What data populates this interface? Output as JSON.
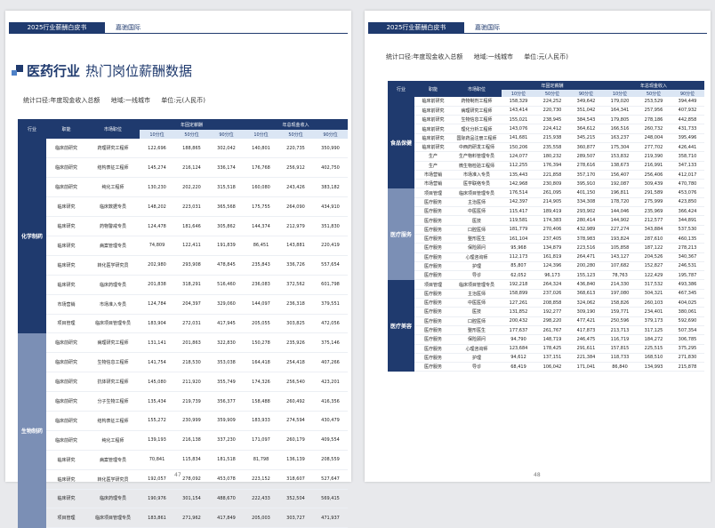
{
  "header": {
    "report": "2025行业薪酬白皮书",
    "brand": "嘉驰国际"
  },
  "left": {
    "title_bold": "医药行业",
    "title_rest": "热门岗位薪酬数据",
    "meta": {
      "basis": "统计口径:年度现金收入总额",
      "region": "地域:一线城市",
      "unit": "单位:元(人民币)"
    },
    "cols": {
      "industry": "行业",
      "function": "职能",
      "position": "市场职位",
      "fixed": "年固定薪酬",
      "total": "年总现金收入",
      "p10": "10分位",
      "p50": "50分位",
      "p90": "90分位"
    },
    "groups": [
      {
        "name": "化学制药",
        "rows": [
          [
            "临床前研究",
            "药理研究工程师",
            "122,696",
            "188,865",
            "302,042",
            "140,801",
            "220,735",
            "350,990"
          ],
          [
            "临床前研究",
            "结构表征工程师",
            "145,274",
            "216,124",
            "336,174",
            "176,768",
            "256,912",
            "402,750"
          ],
          [
            "临床前研究",
            "纯化工程师",
            "130,230",
            "202,220",
            "315,518",
            "160,080",
            "243,426",
            "383,182"
          ],
          [
            "临床研究",
            "临床数据专员",
            "148,202",
            "223,031",
            "365,568",
            "175,755",
            "264,090",
            "434,910"
          ],
          [
            "临床研究",
            "药物警戒专员",
            "124,478",
            "181,646",
            "305,862",
            "144,374",
            "212,979",
            "351,830"
          ],
          [
            "临床研究",
            "病案管理专员",
            "74,809",
            "122,411",
            "191,839",
            "86,451",
            "143,881",
            "220,419"
          ],
          [
            "临床研究",
            "转化医学研究员",
            "202,980",
            "293,908",
            "478,845",
            "235,843",
            "336,726",
            "557,654"
          ],
          [
            "临床研究",
            "临床药理专员",
            "201,838",
            "318,291",
            "516,460",
            "236,083",
            "372,562",
            "601,798"
          ],
          [
            "市场营销",
            "市场准入专员",
            "124,784",
            "204,397",
            "329,060",
            "144,097",
            "236,318",
            "379,551"
          ],
          [
            "项目管理",
            "临床项目管理专员",
            "183,904",
            "272,031",
            "417,945",
            "205,055",
            "303,825",
            "472,056"
          ]
        ]
      },
      {
        "name": "生物制药",
        "rows": [
          [
            "临床前研究",
            "病理研究工程师",
            "131,141",
            "201,863",
            "322,830",
            "150,278",
            "235,926",
            "375,146"
          ],
          [
            "临床前研究",
            "生物信息工程师",
            "141,754",
            "218,530",
            "353,038",
            "164,418",
            "254,418",
            "407,266"
          ],
          [
            "临床前研究",
            "抗体研究工程师",
            "145,080",
            "211,920",
            "355,749",
            "174,326",
            "256,540",
            "423,201"
          ],
          [
            "临床前研究",
            "分子生物工程师",
            "135,434",
            "219,739",
            "356,377",
            "158,488",
            "260,492",
            "416,356"
          ],
          [
            "临床前研究",
            "结构表征工程师",
            "155,272",
            "230,999",
            "359,909",
            "183,933",
            "274,594",
            "430,479"
          ],
          [
            "临床前研究",
            "纯化工程师",
            "139,193",
            "216,138",
            "337,230",
            "171,097",
            "260,179",
            "409,554"
          ],
          [
            "临床研究",
            "病案管理专员",
            "70,841",
            "115,834",
            "181,518",
            "81,798",
            "136,139",
            "208,559"
          ],
          [
            "临床研究",
            "转化医学研究员",
            "192,057",
            "278,092",
            "453,078",
            "223,152",
            "318,607",
            "527,647"
          ],
          [
            "临床研究",
            "临床药理专员",
            "190,976",
            "301,154",
            "488,670",
            "222,433",
            "352,504",
            "569,415"
          ],
          [
            "项目管理",
            "临床项目管理专员",
            "183,861",
            "271,962",
            "417,849",
            "205,003",
            "303,727",
            "471,937"
          ]
        ]
      }
    ],
    "page": "47"
  },
  "right": {
    "meta": {
      "basis": "统计口径:年度现金收入总额",
      "region": "地域:一线城市",
      "unit": "单位:元(人民币)"
    },
    "cols": {
      "industry": "行业",
      "function": "职能",
      "position": "市场职位",
      "fixed": "年固定薪酬",
      "total": "年总现金收入",
      "p10": "10分位",
      "p50": "50分位",
      "p90": "90分位"
    },
    "groups": [
      {
        "name": "食品保健",
        "rows": [
          [
            "临床前研究",
            "药物制剂工程师",
            "158,329",
            "224,252",
            "349,642",
            "179,020",
            "253,529",
            "394,449"
          ],
          [
            "临床前研究",
            "病理研究工程师",
            "143,414",
            "220,730",
            "351,042",
            "164,341",
            "257,956",
            "407,932"
          ],
          [
            "临床前研究",
            "生物信息工程师",
            "155,021",
            "238,945",
            "384,543",
            "179,805",
            "278,186",
            "442,858"
          ],
          [
            "临床前研究",
            "理化分析工程师",
            "143,076",
            "224,412",
            "364,612",
            "166,516",
            "260,732",
            "431,733"
          ],
          [
            "临床前研究",
            "国际药品注册工程师",
            "141,681",
            "215,938",
            "345,215",
            "163,237",
            "248,004",
            "395,496"
          ],
          [
            "临床前研究",
            "中西药研发工程师",
            "150,206",
            "235,558",
            "360,877",
            "175,304",
            "277,702",
            "426,441"
          ],
          [
            "生产",
            "生产物料管理专员",
            "124,077",
            "180,232",
            "289,507",
            "153,832",
            "219,390",
            "358,710"
          ],
          [
            "生产",
            "微生物检验工程师",
            "112,255",
            "176,394",
            "278,616",
            "138,673",
            "216,991",
            "347,133"
          ],
          [
            "市场营销",
            "市场准入专员",
            "135,443",
            "221,858",
            "357,170",
            "156,407",
            "256,406",
            "412,017"
          ],
          [
            "市场营销",
            "医学联络专员",
            "142,968",
            "230,809",
            "395,910",
            "192,087",
            "309,439",
            "470,780"
          ]
        ]
      },
      {
        "name": "医疗服务",
        "rows": [
          [
            "项目管理",
            "临床项目管理专员",
            "176,514",
            "261,095",
            "401,150",
            "196,811",
            "291,589",
            "453,076"
          ],
          [
            "医疗服务",
            "主治医师",
            "142,397",
            "214,905",
            "334,308",
            "178,720",
            "275,999",
            "423,850"
          ],
          [
            "医疗服务",
            "中医医师",
            "115,417",
            "189,419",
            "293,902",
            "144,046",
            "235,969",
            "366,424"
          ],
          [
            "医疗服务",
            "医技",
            "119,581",
            "174,383",
            "280,414",
            "144,902",
            "212,577",
            "344,891"
          ],
          [
            "医疗服务",
            "口腔医师",
            "181,779",
            "270,406",
            "432,989",
            "227,274",
            "343,884",
            "537,530"
          ],
          [
            "医疗服务",
            "整形医生",
            "161,104",
            "237,405",
            "378,983",
            "193,824",
            "287,610",
            "460,135"
          ],
          [
            "医疗服务",
            "保险顾问",
            "95,968",
            "134,879",
            "223,516",
            "105,858",
            "187,122",
            "278,213"
          ],
          [
            "医疗服务",
            "心理咨询师",
            "112,173",
            "161,819",
            "264,471",
            "143,127",
            "204,526",
            "340,367"
          ],
          [
            "医疗服务",
            "护理",
            "85,807",
            "124,396",
            "200,280",
            "107,682",
            "152,827",
            "246,531"
          ],
          [
            "医疗服务",
            "导诊",
            "62,052",
            "96,173",
            "155,123",
            "78,763",
            "122,429",
            "195,787"
          ]
        ]
      },
      {
        "name": "医疗美容",
        "rows": [
          [
            "项目管理",
            "临床项目管理专员",
            "192,218",
            "264,324",
            "436,840",
            "214,330",
            "317,532",
            "493,386"
          ],
          [
            "医疗服务",
            "主治医师",
            "158,899",
            "237,026",
            "368,613",
            "197,080",
            "304,321",
            "467,345"
          ],
          [
            "医疗服务",
            "中医医师",
            "127,261",
            "208,858",
            "324,062",
            "158,826",
            "260,103",
            "404,025"
          ],
          [
            "医疗服务",
            "医技",
            "131,852",
            "192,277",
            "309,190",
            "159,771",
            "234,401",
            "380,061"
          ],
          [
            "医疗服务",
            "口腔医师",
            "200,432",
            "298,220",
            "477,421",
            "250,596",
            "379,173",
            "592,690"
          ],
          [
            "医疗服务",
            "整形医生",
            "177,637",
            "261,767",
            "417,873",
            "213,713",
            "317,125",
            "507,354"
          ],
          [
            "医疗服务",
            "保险顾问",
            "94,790",
            "148,719",
            "246,475",
            "116,719",
            "184,272",
            "306,785"
          ],
          [
            "医疗服务",
            "心理咨询师",
            "123,684",
            "178,425",
            "291,611",
            "157,815",
            "225,515",
            "375,295"
          ],
          [
            "医疗服务",
            "护理",
            "94,612",
            "137,151",
            "221,384",
            "118,733",
            "168,510",
            "271,830"
          ],
          [
            "医疗服务",
            "导诊",
            "68,419",
            "106,042",
            "171,041",
            "86,840",
            "134,993",
            "215,878"
          ]
        ]
      }
    ],
    "page": "48"
  }
}
